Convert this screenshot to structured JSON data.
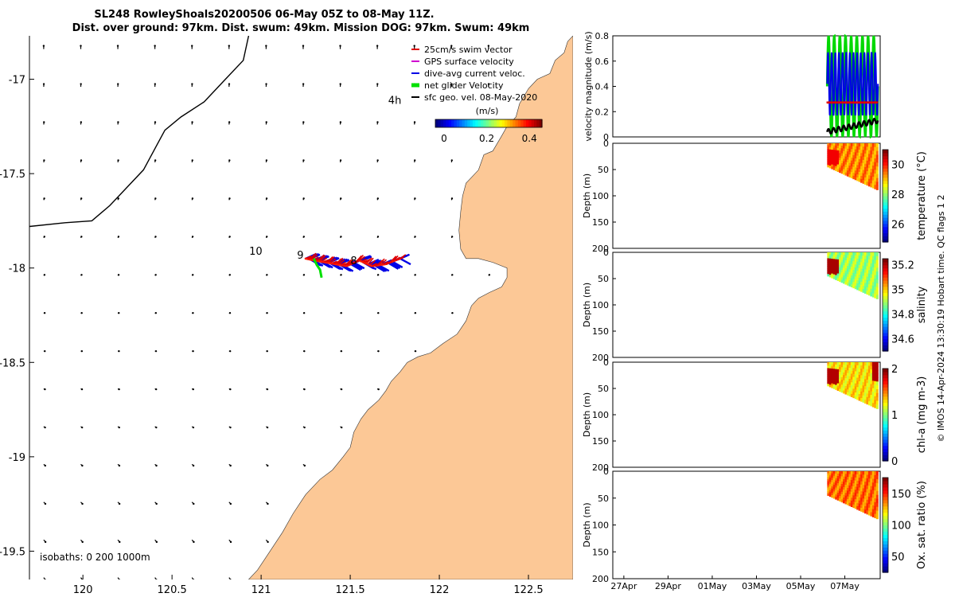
{
  "chart_data": {
    "type": "glider_mission_figure",
    "title": {
      "line1": "SL248 RowleyShoals20200506 06-May 05Z to 08-May 11Z.",
      "line2": "Dist. over ground: 97km. Dist. swum: 49km. Mission DOG: 97km. Swum: 49km"
    },
    "map": {
      "xlim": [
        119.7,
        122.75
      ],
      "ylim": [
        -19.65,
        -16.77
      ],
      "xticks": [
        120,
        120.5,
        121,
        121.5,
        122,
        122.5
      ],
      "xtick_labels": [
        "120",
        "120.5",
        "121",
        "121.5",
        "122",
        "122.5"
      ],
      "yticks": [
        -17,
        -17.5,
        -18,
        -18.5,
        -19,
        -19.5
      ],
      "ytick_labels": [
        "-17",
        "-17.5",
        "-18",
        "-18.5",
        "-19",
        "-19.5"
      ],
      "legend": [
        {
          "label": "25cm/s swim vector",
          "color": "#e00000"
        },
        {
          "label": "GPS surface velocity",
          "color": "#d000d0"
        },
        {
          "label": "dive-avg current veloc.",
          "color": "#0000e6"
        },
        {
          "label": "net glider Velocity",
          "color": "#00e000"
        },
        {
          "label": "sfc geo. vel. 08-May-2020",
          "color": "#000000"
        }
      ],
      "colorbar": {
        "label": "(m/s)",
        "ticks": [
          0,
          0.2,
          0.4
        ],
        "tick_labels": [
          "0",
          "0.2",
          "0.4"
        ],
        "range": [
          0,
          0.5
        ]
      },
      "annotations": [
        {
          "text": "4h",
          "lon": 121.75,
          "lat": -17.13
        },
        {
          "text": "10",
          "lon": 120.97,
          "lat": -17.93
        },
        {
          "text": "9",
          "lon": 121.22,
          "lat": -17.95
        },
        {
          "text": "8",
          "lon": 121.52,
          "lat": -17.98
        }
      ],
      "isobath_label": "isobaths: 0   200  1000m",
      "isobath_line": [
        [
          120.93,
          -16.77
        ],
        [
          120.9,
          -16.9
        ],
        [
          120.8,
          -17.0
        ],
        [
          120.68,
          -17.12
        ],
        [
          120.55,
          -17.2
        ],
        [
          120.46,
          -17.27
        ],
        [
          120.42,
          -17.34
        ],
        [
          120.34,
          -17.48
        ],
        [
          120.24,
          -17.58
        ],
        [
          120.15,
          -17.67
        ],
        [
          120.05,
          -17.75
        ],
        [
          119.9,
          -17.76
        ],
        [
          119.7,
          -17.78
        ]
      ],
      "coast_line": [
        [
          122.75,
          -16.77
        ],
        [
          122.72,
          -16.8
        ],
        [
          122.7,
          -16.86
        ],
        [
          122.65,
          -16.9
        ],
        [
          122.62,
          -16.97
        ],
        [
          122.55,
          -17.0
        ],
        [
          122.5,
          -17.05
        ],
        [
          122.45,
          -17.13
        ],
        [
          122.43,
          -17.2
        ],
        [
          122.38,
          -17.25
        ],
        [
          122.35,
          -17.3
        ],
        [
          122.3,
          -17.38
        ],
        [
          122.25,
          -17.4
        ],
        [
          122.22,
          -17.48
        ],
        [
          122.18,
          -17.52
        ],
        [
          122.15,
          -17.55
        ],
        [
          122.13,
          -17.62
        ],
        [
          122.12,
          -17.7
        ],
        [
          122.11,
          -17.8
        ],
        [
          122.12,
          -17.9
        ],
        [
          122.15,
          -17.95
        ],
        [
          122.22,
          -17.95
        ],
        [
          122.3,
          -17.97
        ],
        [
          122.38,
          -18.0
        ],
        [
          122.38,
          -18.05
        ],
        [
          122.35,
          -18.1
        ],
        [
          122.28,
          -18.13
        ],
        [
          122.22,
          -18.16
        ],
        [
          122.18,
          -18.2
        ],
        [
          122.15,
          -18.28
        ],
        [
          122.1,
          -18.35
        ],
        [
          122.02,
          -18.4
        ],
        [
          121.95,
          -18.45
        ],
        [
          121.88,
          -18.47
        ],
        [
          121.82,
          -18.5
        ],
        [
          121.78,
          -18.55
        ],
        [
          121.73,
          -18.6
        ],
        [
          121.7,
          -18.65
        ],
        [
          121.66,
          -18.7
        ],
        [
          121.6,
          -18.75
        ],
        [
          121.56,
          -18.8
        ],
        [
          121.52,
          -18.87
        ],
        [
          121.5,
          -18.95
        ],
        [
          121.46,
          -19.0
        ],
        [
          121.4,
          -19.07
        ],
        [
          121.33,
          -19.12
        ],
        [
          121.25,
          -19.2
        ],
        [
          121.18,
          -19.3
        ],
        [
          121.12,
          -19.4
        ],
        [
          121.05,
          -19.5
        ],
        [
          120.98,
          -19.6
        ],
        [
          120.93,
          -19.65
        ]
      ],
      "vector_field": {
        "lon_start": 119.78,
        "lon_step": 0.208,
        "lon_count": 13,
        "lat_start": -16.84,
        "lat_step": -0.2,
        "lat_count": 15,
        "u": [
          0.0,
          0.03
        ],
        "v": [
          0.05,
          -0.04
        ]
      },
      "glider_track": {
        "lon": [
          121.78,
          121.7,
          121.62,
          121.55,
          121.48,
          121.42,
          121.36,
          121.3,
          121.25
        ],
        "lat": [
          -17.95,
          -17.98,
          -17.99,
          -17.96,
          -17.99,
          -17.98,
          -17.97,
          -17.96,
          -17.95
        ],
        "dive_avg_current": {
          "u": [
            0.1,
            0.12
          ],
          "v": [
            0.05,
            -0.06
          ]
        }
      }
    },
    "panels": {
      "time_ticks": [
        "27Apr",
        "29Apr",
        "01May",
        "03May",
        "05May",
        "07May"
      ],
      "time_range_days": [
        26.5,
        38.6
      ],
      "velocity": {
        "ylabel": "velocity magnitude (m/s)",
        "ylim": [
          0,
          0.8
        ],
        "yticks": [
          0,
          0.2,
          0.4,
          0.6,
          0.8
        ],
        "ytick_labels": [
          "0",
          "0.2",
          "0.4",
          "0.6",
          "0.8"
        ],
        "start_day": 36.2,
        "end_day": 38.5,
        "series": [
          {
            "name": "net glider Velocity",
            "color": "#00d800",
            "baseline": 0.4,
            "amplitude": 0.4,
            "oscillation_cycles": 9
          },
          {
            "name": "dive-avg current velocity",
            "color": "#0000e6",
            "baseline": 0.42,
            "amplitude": 0.25,
            "oscillation_cycles": 14
          },
          {
            "name": "25cm/s swim vector",
            "color": "#e00000",
            "baseline": 0.27,
            "amplitude": 0.0,
            "oscillation_cycles": 0
          },
          {
            "name": "sfc geo. vel.",
            "color": "#000000",
            "baseline": 0.12,
            "amplitude": 0.02,
            "oscillation_cycles": 10
          }
        ]
      },
      "sections": [
        {
          "name": "temperature",
          "ylabel": "Depth (m)",
          "clabel": "temperature (°C)",
          "crange": [
            24.8,
            31
          ],
          "cticks": [
            26,
            28,
            30
          ],
          "ctick_labels": [
            "26",
            "28",
            "30"
          ],
          "max_depth": 200,
          "depth_ticks": [
            "0",
            "50",
            "100",
            "150",
            "200"
          ],
          "surface": 29.4,
          "warm_patch": 30.3,
          "patch_depth": 40
        },
        {
          "name": "salinity",
          "ylabel": "Depth (m)",
          "clabel": "salinity",
          "crange": [
            34.5,
            35.25
          ],
          "cticks": [
            34.6,
            34.8,
            35,
            35.2
          ],
          "ctick_labels": [
            "34.6",
            "34.8",
            "35",
            "35.2"
          ],
          "max_depth": 200,
          "depth_ticks": [
            "0",
            "50",
            "100",
            "150",
            "200"
          ],
          "surface": 34.9,
          "warm_patch": 35.22,
          "patch_depth": 40
        },
        {
          "name": "chl-a",
          "ylabel": "Depth (m)",
          "clabel": "chl-a (mg m-3)",
          "crange": [
            0,
            2
          ],
          "cticks": [
            0,
            1,
            2
          ],
          "ctick_labels": [
            "0",
            "1",
            "2"
          ],
          "max_depth": 200,
          "depth_ticks": [
            "0",
            "50",
            "100",
            "150",
            "200"
          ],
          "surface": 1.3,
          "warm_patch": 1.9,
          "patch_depth": 40
        },
        {
          "name": "oxygen",
          "ylabel": "Depth (m)",
          "clabel": "Ox. sat. ratio (%)",
          "crange": [
            25,
            175
          ],
          "cticks": [
            50,
            100,
            150
          ],
          "ctick_labels": [
            "50",
            "100",
            "150"
          ],
          "max_depth": 200,
          "depth_ticks": [
            "0",
            "50",
            "100",
            "150",
            "200"
          ],
          "surface": 140,
          "warm_patch": 140,
          "patch_depth": 0
        }
      ],
      "footer": "© IMOS 14-Apr-2024 13:30:19 Hobart time. QC flags 1  2"
    },
    "colors": {
      "land": "#fcc896",
      "sea": "#ffffff"
    }
  }
}
